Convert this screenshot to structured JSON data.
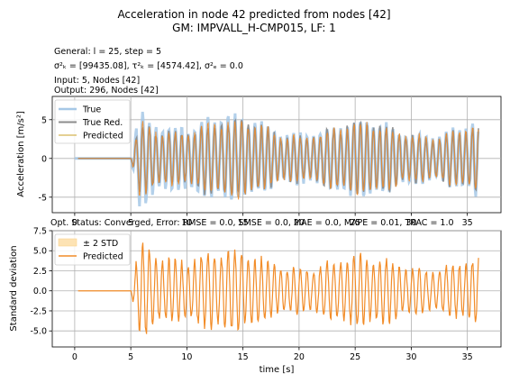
{
  "figure": {
    "title_line1": "Acceleration in node 42 predicted from nodes [42]",
    "title_line2": "GM: IMPVALL_H-CMP015, LF: 1",
    "info": {
      "line1": "General: l = 25, step = 5",
      "line2": "σ²ₖ = [99435.08], τ²ₖ = [4574.42], σ²ₑ = 0.0",
      "line3": "Input: 5, Nodes [42]",
      "line4": "Output: 296, Nodes [42]"
    },
    "opt_status": "Opt. Status: Converged, Error: RMSE = 0.0, SMSE = 0.0, MAE = 0.0, MAPE = 0.01, TRAC = 1.0"
  },
  "colors": {
    "true": "#a6c8e6",
    "true_red": "#8c8c8c",
    "predicted": "#f28c28",
    "std_fill": "#fde3b4"
  },
  "chart_data": [
    {
      "type": "line",
      "ylabel": "Acceleration [m/s²]",
      "xlabel": "",
      "xlim": [
        -2,
        38
      ],
      "ylim": [
        -7,
        8
      ],
      "x_ticks": [
        0,
        5,
        10,
        15,
        20,
        25,
        30,
        35
      ],
      "y_ticks": [
        -5,
        0,
        5
      ],
      "grid": true,
      "legend_position": "upper-left",
      "series": [
        {
          "name": "True",
          "color_key": "true",
          "signal": {
            "t_start": 0.0,
            "t_end": 36.0,
            "onset": 5.0,
            "peak_amplitude": 7.2,
            "sustained_amplitude": 4.5,
            "frequency_hz": 1.7
          }
        },
        {
          "name": "True Red.",
          "color_key": "true_red",
          "signal": {
            "t_start": 0.3,
            "t_end": 36.0,
            "onset": 5.0,
            "peak_amplitude": 5.5,
            "sustained_amplitude": 4.3,
            "frequency_hz": 1.7
          }
        },
        {
          "name": "Predicted",
          "color_key": "predicted",
          "signal": {
            "t_start": 0.3,
            "t_end": 36.0,
            "onset": 5.0,
            "peak_amplitude": 5.5,
            "sustained_amplitude": 4.3,
            "frequency_hz": 1.7
          }
        }
      ]
    },
    {
      "type": "line",
      "ylabel": "Standard deviation",
      "xlabel": "time [s]",
      "xlim": [
        -2,
        38
      ],
      "ylim": [
        -7.0,
        7.5
      ],
      "x_ticks": [
        0,
        5,
        10,
        15,
        20,
        25,
        30,
        35
      ],
      "y_ticks": [
        -5.0,
        -2.5,
        0.0,
        2.5,
        5.0,
        7.5
      ],
      "grid": true,
      "legend_position": "upper-left",
      "series": [
        {
          "name": "± 2 STD",
          "color_key": "std_fill",
          "style": "band",
          "half_width": 0.0
        },
        {
          "name": "Predicted",
          "color_key": "predicted",
          "signal": {
            "t_start": 0.3,
            "t_end": 36.0,
            "onset": 5.0,
            "peak_amplitude": 6.8,
            "sustained_amplitude": 4.0,
            "frequency_hz": 1.7
          }
        }
      ]
    }
  ]
}
